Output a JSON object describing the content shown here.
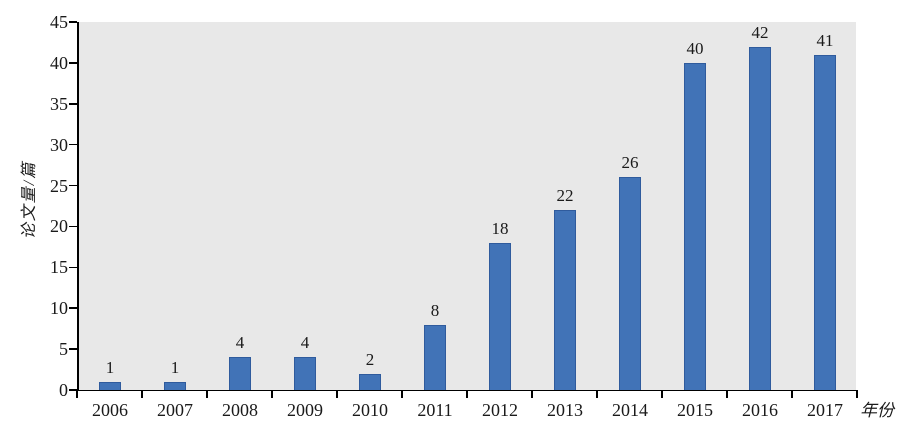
{
  "figure": {
    "background_color": "#ffffff",
    "plot_background_color": "#e8e8e8",
    "bar_color": "#4173b7",
    "bar_border_color": "#2f5b9d",
    "axis_color": "#000000",
    "text_color": "#1a1a1a"
  },
  "chart_data": {
    "type": "bar",
    "title": "",
    "categories": [
      "2006",
      "2007",
      "2008",
      "2009",
      "2010",
      "2011",
      "2012",
      "2013",
      "2014",
      "2015",
      "2016",
      "2017"
    ],
    "values": [
      1,
      1,
      4,
      4,
      2,
      8,
      18,
      22,
      26,
      40,
      42,
      41
    ],
    "xlabel": "年份",
    "ylabel": "论文量/篇",
    "ylim": [
      0,
      45
    ],
    "yticks": [
      0,
      5,
      10,
      15,
      20,
      25,
      30,
      35,
      40,
      45
    ],
    "grid": false,
    "legend": null,
    "data_labels": true
  }
}
